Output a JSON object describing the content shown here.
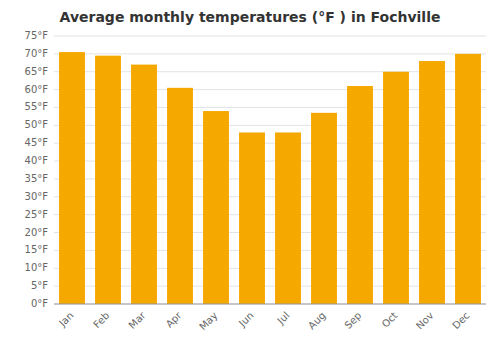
{
  "chart_data": {
    "type": "bar",
    "title": "Average monthly temperatures (°F ) in Fochville",
    "categories": [
      "Jan",
      "Feb",
      "Mar",
      "Apr",
      "May",
      "Jun",
      "Jul",
      "Aug",
      "Sep",
      "Oct",
      "Nov",
      "Dec"
    ],
    "values": [
      70.5,
      69.5,
      67.0,
      60.5,
      54.0,
      48.0,
      48.0,
      53.5,
      61.0,
      65.0,
      68.0,
      70.0
    ],
    "color": "#F5A800",
    "ylim": [
      0,
      75
    ],
    "yticks": [
      {
        "value": 0,
        "label": "0°F"
      },
      {
        "value": 5,
        "label": "5°F"
      },
      {
        "value": 10,
        "label": "10°F"
      },
      {
        "value": 15,
        "label": "15°F"
      },
      {
        "value": 20,
        "label": "20°F"
      },
      {
        "value": 25,
        "label": "25°F"
      },
      {
        "value": 30,
        "label": "30°F"
      },
      {
        "value": 35,
        "label": "35°F"
      },
      {
        "value": 40,
        "label": "40°F"
      },
      {
        "value": 45,
        "label": "45°F"
      },
      {
        "value": 50,
        "label": "50°F"
      },
      {
        "value": 55,
        "label": "55°F"
      },
      {
        "value": 60,
        "label": "60°F"
      },
      {
        "value": 65,
        "label": "65°F"
      },
      {
        "value": 70,
        "label": "70°F"
      },
      {
        "value": 75,
        "label": "75°F"
      }
    ],
    "grid": true
  }
}
